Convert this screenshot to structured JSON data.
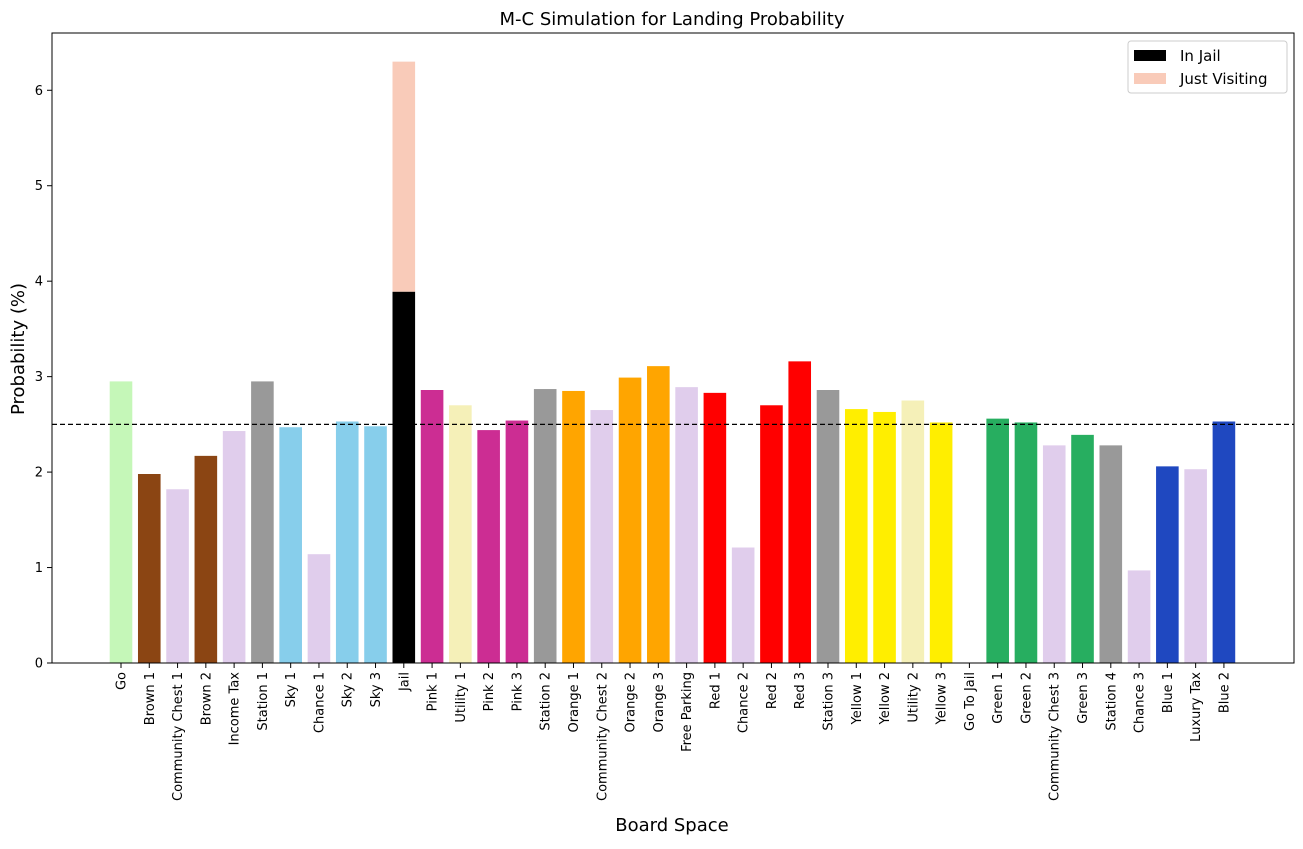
{
  "chart_data": {
    "type": "bar",
    "title": "M-C Simulation for Landing Probability",
    "xlabel": "Board Space",
    "ylabel": "Probability (%)",
    "ylim": [
      0,
      6.6
    ],
    "yticks": [
      0,
      1,
      2,
      3,
      4,
      5,
      6
    ],
    "grid": false,
    "reference_line": {
      "y": 2.5,
      "style": "dashed"
    },
    "legend": {
      "placement": "top-right",
      "entries": [
        {
          "label": "In Jail",
          "color": "#000000"
        },
        {
          "label": "Just Visiting",
          "color": "#f9cbb9"
        }
      ]
    },
    "categories": [
      "Go",
      "Brown 1",
      "Community Chest 1",
      "Brown 2",
      "Income Tax",
      "Station 1",
      "Sky 1",
      "Chance 1",
      "Sky 2",
      "Sky 3",
      "Jail",
      "Pink 1",
      "Utility 1",
      "Pink 2",
      "Pink 3",
      "Station 2",
      "Orange 1",
      "Community Chest 2",
      "Orange 2",
      "Orange 3",
      "Free Parking",
      "Red 1",
      "Chance 2",
      "Red 2",
      "Red 3",
      "Station 3",
      "Yellow 1",
      "Yellow 2",
      "Utility 2",
      "Yellow 3",
      "Go To Jail",
      "Green 1",
      "Green 2",
      "Community Chest 3",
      "Green 3",
      "Station 4",
      "Chance 3",
      "Blue 1",
      "Luxury Tax",
      "Blue 2"
    ],
    "values": [
      2.95,
      1.98,
      1.82,
      2.17,
      2.43,
      2.95,
      2.47,
      1.14,
      2.53,
      2.48,
      3.89,
      2.86,
      2.7,
      2.44,
      2.54,
      2.87,
      2.85,
      2.65,
      2.99,
      3.11,
      2.89,
      2.83,
      1.21,
      2.7,
      3.16,
      2.86,
      2.66,
      2.63,
      2.75,
      2.52,
      0,
      2.56,
      2.52,
      2.28,
      2.39,
      2.28,
      0.97,
      2.06,
      2.03,
      2.53
    ],
    "stacked": {
      "category": "Jail",
      "base": 3.89,
      "top_value": 2.41,
      "total": 6.3
    },
    "colors": [
      "#c5f7b8",
      "#8b4513",
      "#e0cdec",
      "#8b4513",
      "#e0cdec",
      "#999999",
      "#87ceeb",
      "#e0cdec",
      "#87ceeb",
      "#87ceeb",
      "#000000",
      "#cc2d93",
      "#f5f0b8",
      "#cc2d93",
      "#cc2d93",
      "#999999",
      "#ffa500",
      "#e0cdec",
      "#ffa500",
      "#ffa500",
      "#e0cdec",
      "#ff0000",
      "#e0cdec",
      "#ff0000",
      "#ff0000",
      "#999999",
      "#ffee00",
      "#ffee00",
      "#f5f0b8",
      "#ffee00",
      "#ffffff",
      "#27ae60",
      "#27ae60",
      "#e0cdec",
      "#27ae60",
      "#999999",
      "#e0cdec",
      "#1f48c0",
      "#e0cdec",
      "#1f48c0"
    ],
    "stack_color": "#f9cbb9"
  }
}
